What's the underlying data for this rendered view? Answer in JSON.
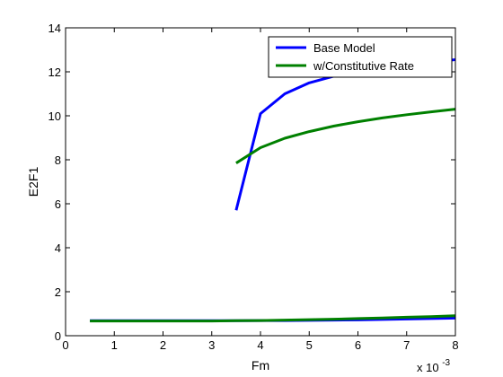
{
  "chart_data": {
    "type": "line",
    "xlabel": "Fm",
    "ylabel": "E2F1",
    "x_exponent_label": "x 10",
    "x_exponent_power": "-3",
    "xlim": [
      0,
      8
    ],
    "ylim": [
      0,
      14
    ],
    "xticks": [
      "0",
      "1",
      "2",
      "3",
      "4",
      "5",
      "6",
      "7",
      "8"
    ],
    "yticks": [
      "0",
      "2",
      "4",
      "6",
      "8",
      "10",
      "12",
      "14"
    ],
    "grid": false,
    "legend_position": "top-right",
    "series": [
      {
        "name": "Base Model",
        "color": "#0000ff",
        "branches": [
          {
            "x": [
              0.5,
              1,
              1.5,
              2,
              2.5,
              3,
              3.5,
              4,
              4.5,
              5,
              5.5,
              6,
              6.5,
              7,
              7.5,
              8
            ],
            "y": [
              0.68,
              0.68,
              0.68,
              0.68,
              0.68,
              0.68,
              0.68,
              0.69,
              0.69,
              0.7,
              0.71,
              0.72,
              0.74,
              0.76,
              0.78,
              0.8
            ]
          },
          {
            "x": [
              3.5,
              4,
              4.5,
              5,
              5.5,
              6,
              6.5,
              7,
              7.5,
              8
            ],
            "y": [
              5.7,
              10.1,
              11.0,
              11.5,
              11.8,
              12.0,
              12.15,
              12.3,
              12.45,
              12.55
            ]
          }
        ]
      },
      {
        "name": "w/Constitutive Rate",
        "color": "#008000",
        "branches": [
          {
            "x": [
              0.5,
              1,
              1.5,
              2,
              2.5,
              3,
              3.5,
              4,
              4.5,
              5,
              5.5,
              6,
              6.5,
              7,
              7.5,
              8
            ],
            "y": [
              0.67,
              0.67,
              0.67,
              0.67,
              0.67,
              0.67,
              0.68,
              0.69,
              0.71,
              0.73,
              0.75,
              0.78,
              0.81,
              0.84,
              0.87,
              0.91
            ]
          },
          {
            "x": [
              3.5,
              4,
              4.5,
              5,
              5.5,
              6,
              6.5,
              7,
              7.5,
              8
            ],
            "y": [
              7.85,
              8.55,
              8.98,
              9.28,
              9.53,
              9.73,
              9.9,
              10.05,
              10.18,
              10.3
            ]
          }
        ]
      }
    ]
  }
}
